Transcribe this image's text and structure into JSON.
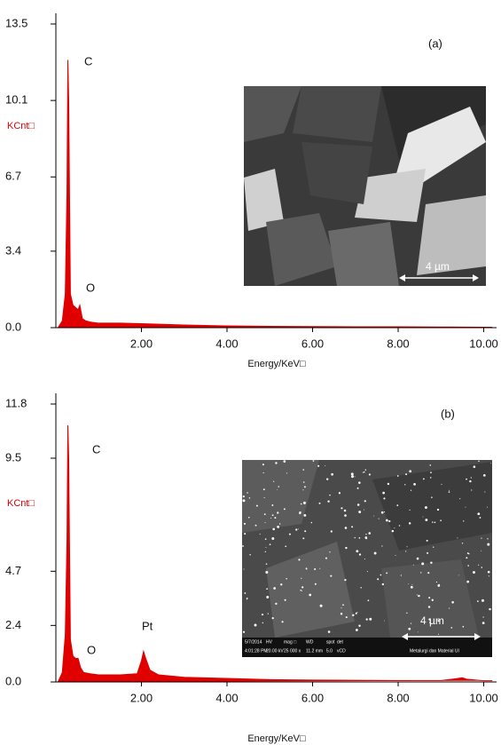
{
  "chart_data": [
    {
      "type": "area",
      "color": "#e00000",
      "y_label": "KCnt□",
      "x_label": "Energy/KeV□",
      "annotations": [
        "C",
        "O",
        "(a)"
      ],
      "x": [
        0.05,
        0.15,
        0.22,
        0.26,
        0.28,
        0.3,
        0.34,
        0.4,
        0.46,
        0.52,
        0.56,
        0.62,
        0.7,
        0.8,
        1.0,
        1.5,
        2.0,
        2.5,
        3.0,
        4.0,
        5.0,
        6.0,
        7.0,
        8.0,
        9.0,
        10.0,
        10.2
      ],
      "values": [
        0,
        0.3,
        1.5,
        6,
        11.9,
        10.1,
        1.5,
        1.0,
        0.9,
        0.8,
        1.0,
        0.4,
        0.3,
        0.25,
        0.2,
        0.2,
        0.18,
        0.15,
        0.12,
        0.08,
        0.06,
        0.05,
        0.04,
        0.04,
        0.03,
        0.02,
        0.02
      ],
      "xlim": [
        0,
        10.3
      ],
      "ylim": [
        0,
        13.5
      ],
      "xticks": [
        {
          "value": 2,
          "label": "2.00"
        },
        {
          "value": 4,
          "label": "4.00"
        },
        {
          "value": 6,
          "label": "6.00"
        },
        {
          "value": 8,
          "label": "8.00"
        },
        {
          "value": 10,
          "label": "10.00"
        }
      ],
      "yticks": [
        {
          "value": 0,
          "label": "0.0"
        },
        3.4,
        6.7,
        10.1,
        13.5
      ],
      "inset": {
        "scale_bar": "4 µm"
      }
    },
    {
      "type": "area",
      "color": "#e00000",
      "y_label": "KCnt□",
      "x_label": "Energy/KeV□",
      "annotations": [
        "C",
        "O",
        "Pt",
        "(b)"
      ],
      "x": [
        0.05,
        0.15,
        0.22,
        0.26,
        0.28,
        0.3,
        0.34,
        0.4,
        0.46,
        0.52,
        0.58,
        0.65,
        0.8,
        1.0,
        1.5,
        1.9,
        2.0,
        2.05,
        2.1,
        2.2,
        2.4,
        3.0,
        4.0,
        5.0,
        6.0,
        7.0,
        8.0,
        9.0,
        9.4,
        9.5,
        9.6,
        10.0,
        10.2
      ],
      "values": [
        0,
        0.4,
        2,
        6,
        10.9,
        9.5,
        1.8,
        1.1,
        1.0,
        1.0,
        0.6,
        0.4,
        0.35,
        0.3,
        0.3,
        0.35,
        0.9,
        1.3,
        1.0,
        0.5,
        0.3,
        0.2,
        0.15,
        0.1,
        0.08,
        0.07,
        0.06,
        0.06,
        0.15,
        0.18,
        0.12,
        0.05,
        0.05
      ],
      "xlim": [
        0,
        10.3
      ],
      "ylim": [
        0,
        11.8
      ],
      "xticks": [
        {
          "value": 2,
          "label": "2.00"
        },
        {
          "value": 4,
          "label": "4.00"
        },
        {
          "value": 6,
          "label": "6.00"
        },
        {
          "value": 8,
          "label": "8.00"
        },
        {
          "value": 10,
          "label": "10.00"
        }
      ],
      "yticks": [
        {
          "value": 0,
          "label": "0.0"
        },
        2.4,
        4.7,
        9.5,
        11.8
      ],
      "inset": {
        "scale_bar": "4 µm",
        "info": [
          "5/7/2014",
          "4:01:28 PM",
          "HV",
          "20.00 kV",
          "mag □",
          "25 000 x",
          "WD",
          "11.2 mm",
          "spot",
          "5.0",
          "det",
          "vCD",
          "Metalurgi dan Material UI"
        ]
      }
    }
  ]
}
